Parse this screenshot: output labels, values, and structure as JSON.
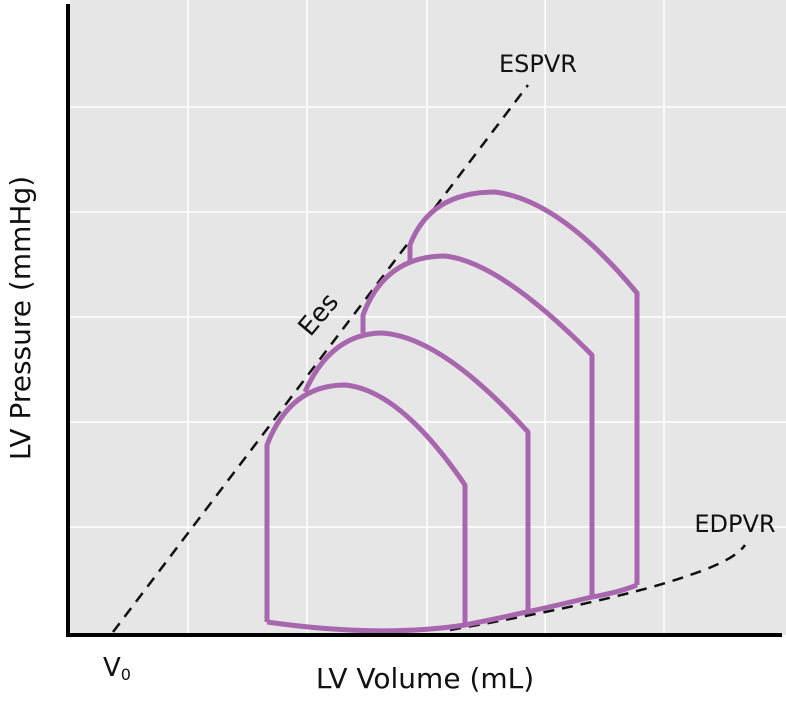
{
  "labels": {
    "espvr": "ESPVR",
    "ees": "Ees",
    "edpvr": "EDPVR",
    "v0_main": "V",
    "v0_sub": "0"
  },
  "axes": {
    "x_label": "LV Volume (mL)",
    "y_label": "LV Pressure (mmHg)"
  }
}
